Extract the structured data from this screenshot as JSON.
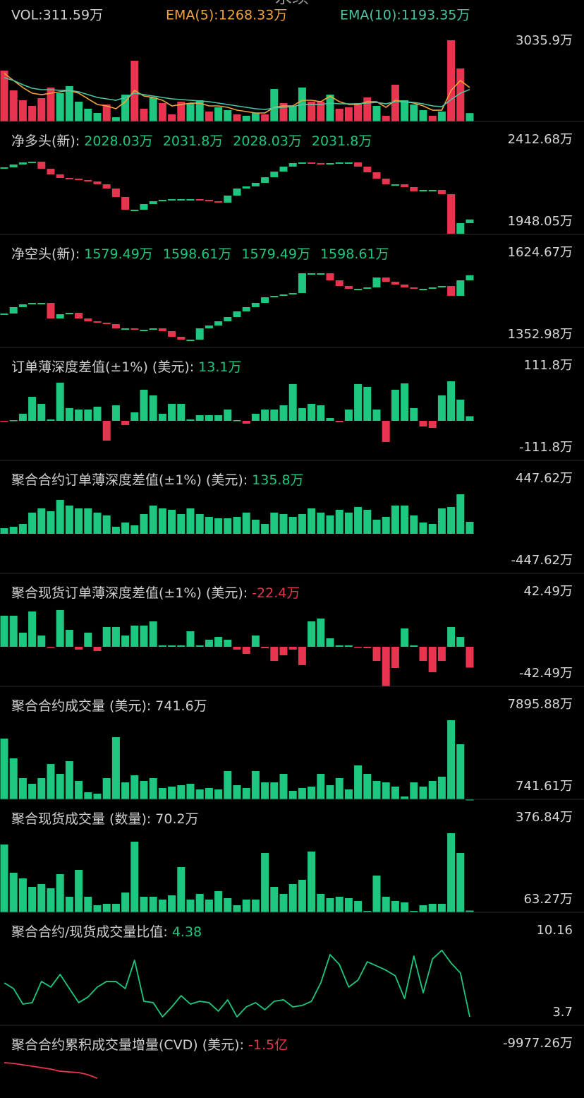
{
  "title": "永续",
  "chart_data": [
    {
      "type": "bar",
      "header": [
        {
          "text": "VOL:311.59万",
          "color": "#cfcfcf"
        },
        {
          "text": "EMA(5):1268.33万",
          "color": "#f2a33a"
        },
        {
          "text": "EMA(10):1193.35万",
          "color": "#4cc4a4"
        }
      ],
      "values": [
        1901,
        1162,
        792,
        581,
        871,
        1267,
        1056,
        1320,
        739,
        475,
        317,
        634,
        158,
        1003,
        2270,
        475,
        898,
        686,
        264,
        739,
        686,
        792,
        370,
        528,
        422,
        264,
        211,
        317,
        264,
        1214,
        686,
        581,
        1267,
        739,
        739,
        1003,
        475,
        528,
        686,
        898,
        581,
        211,
        1373,
        792,
        634,
        422,
        211,
        370,
        3035.9,
        1980,
        311.59
      ],
      "colors": [
        "#e8344e",
        "#e8344e",
        "#e8344e",
        "#e8344e",
        "#e8344e",
        "#e8344e",
        "#1ec77f",
        "#1ec77f",
        "#1ec77f",
        "#1ec77f",
        "#1ec77f",
        "#e8344e",
        "#1ec77f",
        "#1ec77f",
        "#e8344e",
        "#e8344e",
        "#1ec77f",
        "#e8344e",
        "#e8344e",
        "#e8344e",
        "#1ec77f",
        "#1ec77f",
        "#e8344e",
        "#1ec77f",
        "#1ec77f",
        "#e8344e",
        "#1ec77f",
        "#1ec77f",
        "#e8344e",
        "#1ec77f",
        "#e8344e",
        "#1ec77f",
        "#1ec77f",
        "#e8344e",
        "#e8344e",
        "#1ec77f",
        "#e8344e",
        "#e8344e",
        "#e8344e",
        "#e8344e",
        "#1ec77f",
        "#e8344e",
        "#e8344e",
        "#1ec77f",
        "#1ec77f",
        "#1ec77f",
        "#e8344e",
        "#1ec77f",
        "#e8344e",
        "#e8344e",
        "#1ec77f"
      ],
      "lines": [
        {
          "color": "#f2a33a",
          "values": [
            1795,
            1531,
            1267,
            1056,
            1003,
            1056,
            1109,
            1162,
            1056,
            845,
            634,
            581,
            475,
            739,
            1162,
            950,
            898,
            792,
            581,
            634,
            686,
            686,
            581,
            581,
            528,
            422,
            370,
            317,
            317,
            528,
            581,
            581,
            792,
            792,
            739,
            950,
            739,
            634,
            634,
            739,
            739,
            528,
            792,
            739,
            686,
            581,
            422,
            422,
            1162,
            1531,
            1268.33
          ]
        },
        {
          "color": "#4cc4a4",
          "values": [
            1637,
            1531,
            1373,
            1241,
            1188,
            1188,
            1162,
            1162,
            1109,
            1003,
            898,
            845,
            792,
            898,
            1056,
            1003,
            950,
            898,
            845,
            818,
            792,
            766,
            739,
            686,
            634,
            581,
            528,
            475,
            449,
            502,
            528,
            554,
            634,
            634,
            634,
            686,
            660,
            660,
            660,
            686,
            713,
            660,
            739,
            739,
            713,
            660,
            581,
            554,
            818,
            1056,
            1193.35
          ]
        }
      ],
      "ylim": [
        0,
        3035.9
      ],
      "yticks": [
        {
          "value": 3035.9,
          "label": "3035.9万"
        }
      ]
    },
    {
      "type": "candle-step",
      "header": [
        {
          "text": "净多头(新):",
          "color": "#cfcfcf"
        },
        {
          "text": "2028.03万",
          "color": "#1ec77f"
        },
        {
          "text": "2031.8万",
          "color": "#1ec77f"
        },
        {
          "text": "2028.03万",
          "color": "#1ec77f"
        },
        {
          "text": "2031.8万",
          "color": "#1ec77f"
        }
      ],
      "values": [
        2338.2,
        2354.8,
        2367.2,
        2371.4,
        2329.9,
        2296.7,
        2275.9,
        2271.8,
        2263.5,
        2255.2,
        2238.6,
        2213.7,
        2163.9,
        2089.2,
        2089.2,
        2122.4,
        2139.0,
        2147.3,
        2151.4,
        2151.4,
        2151.4,
        2147.3,
        2139.0,
        2130.7,
        2172.2,
        2213.7,
        2226.1,
        2246.9,
        2280.1,
        2313.3,
        2342.3,
        2363.1,
        2367.2,
        2363.1,
        2354.8,
        2363.1,
        2367.2,
        2367.2,
        2342.3,
        2309.1,
        2271.8,
        2238.6,
        2238.6,
        2222.0,
        2197.1,
        2205.3,
        2205.3,
        2180.5,
        1948.05,
        2010.3,
        2031.8
      ],
      "up_color": "#1ec77f",
      "down_color": "#e8344e",
      "ylim": [
        1948.05,
        2412.68
      ],
      "yticks": [
        {
          "value": 2412.68,
          "label": "2412.68万"
        },
        {
          "value": 1948.05,
          "label": "1948.05万"
        }
      ]
    },
    {
      "type": "candle-step",
      "header": [
        {
          "text": "净空头(新):",
          "color": "#cfcfcf"
        },
        {
          "text": "1579.49万",
          "color": "#1ec77f"
        },
        {
          "text": "1598.61万",
          "color": "#1ec77f"
        },
        {
          "text": "1579.49万",
          "color": "#1ec77f"
        },
        {
          "text": "1598.61万",
          "color": "#1ec77f"
        }
      ],
      "values": [
        1467.0,
        1488.9,
        1498.5,
        1503.4,
        1503.4,
        1450.0,
        1464.6,
        1469.4,
        1450.0,
        1440.3,
        1435.5,
        1430.6,
        1416.1,
        1416.1,
        1411.2,
        1411.2,
        1416.1,
        1406.4,
        1387.0,
        1377.2,
        1377.2,
        1416.1,
        1425.8,
        1440.3,
        1454.9,
        1474.3,
        1488.9,
        1503.4,
        1522.8,
        1527.7,
        1532.5,
        1537.4,
        1605.3,
        1605.3,
        1605.3,
        1581.0,
        1561.6,
        1551.9,
        1551.9,
        1556.8,
        1590.7,
        1576.2,
        1566.5,
        1556.8,
        1551.9,
        1551.9,
        1556.8,
        1561.6,
        1527.7,
        1581.0,
        1598.61
      ],
      "up_color": "#1ec77f",
      "down_color": "#e8344e",
      "ylim": [
        1352.98,
        1624.67
      ],
      "yticks": [
        {
          "value": 1624.67,
          "label": "1624.67万"
        },
        {
          "value": 1352.98,
          "label": "1352.98万"
        }
      ]
    },
    {
      "type": "bar",
      "header": [
        {
          "text": "订单薄深度差值(±1%) (美元):",
          "color": "#cfcfcf"
        },
        {
          "text": "13.1万",
          "color": "#1ec77f"
        }
      ],
      "values": [
        -2,
        2,
        20,
        68,
        48,
        4,
        108,
        36,
        32,
        32,
        40,
        -56,
        44,
        -12,
        24,
        88,
        72,
        20,
        48,
        48,
        4,
        16,
        16,
        16,
        32,
        2,
        -8,
        20,
        32,
        32,
        44,
        104,
        36,
        48,
        44,
        8,
        -4,
        32,
        104,
        96,
        32,
        -60,
        88,
        106,
        36,
        -16,
        -20,
        72,
        111.8,
        60,
        13.1
      ],
      "up_color": "#1ec77f",
      "down_color": "#e8344e",
      "ylim": [
        -111.8,
        111.8
      ],
      "yticks": [
        {
          "value": 111.8,
          "label": "111.8万"
        },
        {
          "value": -111.8,
          "label": "-111.8万"
        }
      ]
    },
    {
      "type": "bar",
      "header": [
        {
          "text": "聚合合约订单薄深度差值(±1%) (美元):",
          "color": "#cfcfcf"
        },
        {
          "text": "135.8万",
          "color": "#1ec77f"
        }
      ],
      "values": [
        64,
        80,
        112,
        240,
        288,
        256,
        384,
        320,
        288,
        288,
        240,
        208,
        80,
        128,
        96,
        224,
        320,
        288,
        272,
        224,
        288,
        224,
        192,
        176,
        176,
        192,
        240,
        160,
        112,
        240,
        224,
        192,
        224,
        288,
        240,
        208,
        272,
        240,
        304,
        272,
        160,
        192,
        320,
        320,
        208,
        128,
        112,
        288,
        304,
        447.62,
        135.8
      ],
      "up_color": "#1ec77f",
      "down_color": "#e8344e",
      "ylim": [
        -447.62,
        447.62
      ],
      "yticks": [
        {
          "value": 447.62,
          "label": "447.62万"
        },
        {
          "value": -447.62,
          "label": "-447.62万"
        }
      ]
    },
    {
      "type": "bar",
      "header": [
        {
          "text": "聚合现货订单薄深度差值(±1%) (美元):",
          "color": "#cfcfcf"
        },
        {
          "text": "-22.4万",
          "color": "#e8344e"
        }
      ],
      "values": [
        33.4,
        33.4,
        15.2,
        38,
        12.1,
        -0.8,
        39.5,
        18.2,
        -3,
        15.2,
        -4.6,
        21.3,
        21.3,
        12.1,
        22.8,
        22.8,
        27.3,
        1.5,
        1.5,
        1.5,
        16.7,
        1.5,
        7.6,
        10.6,
        7.6,
        -3,
        -7.6,
        12.1,
        -1.5,
        -15.2,
        -9.1,
        -3,
        -19.7,
        27.3,
        30.4,
        9.1,
        1.5,
        1.5,
        -0.8,
        -1.5,
        -15.2,
        -42.49,
        -22.8,
        19.7,
        1.5,
        -15.2,
        -27.3,
        -15.2,
        21.3,
        10.6,
        -22.4
      ],
      "up_color": "#1ec77f",
      "down_color": "#e8344e",
      "ylim": [
        -42.49,
        42.49
      ],
      "yticks": [
        {
          "value": 42.49,
          "label": "42.49万"
        },
        {
          "value": -42.49,
          "label": "-42.49万"
        }
      ]
    },
    {
      "type": "bar",
      "header": [
        {
          "text": "聚合合约成交量 (美元):",
          "color": "#cfcfcf"
        },
        {
          "text": "741.6万",
          "color": "#cfcfcf"
        }
      ],
      "values": [
        6235.3,
        4446.7,
        2658.0,
        2147,
        2658,
        3935.6,
        3041.3,
        4191.1,
        2402.5,
        1380.4,
        1252.6,
        2658,
        6363,
        2274.7,
        2913.5,
        2402.5,
        2658,
        1763.7,
        1891.4,
        2019.2,
        2147,
        1635.9,
        1763.7,
        1635.9,
        3296.8,
        2019.2,
        1763.7,
        3296.8,
        2274.7,
        2274.7,
        3041.3,
        1508.2,
        1763.7,
        1891.4,
        3041.3,
        2019.2,
        2658,
        1635.9,
        3807.9,
        3041.3,
        2402.5,
        2274.7,
        1891.4,
        997.1,
        2274.7,
        1891.4,
        2402.5,
        2785.8,
        7895.88,
        5724.3,
        741.61
      ],
      "up_color": "#1ec77f",
      "down_color": "#e8344e",
      "ylim": [
        741.61,
        7895.88
      ],
      "yticks": [
        {
          "value": 7895.88,
          "label": "7895.88万"
        },
        {
          "value": 741.61,
          "label": "741.61万"
        }
      ]
    },
    {
      "type": "bar",
      "header": [
        {
          "text": "聚合现货成交量 (数量):",
          "color": "#cfcfcf"
        },
        {
          "text": "70.2万",
          "color": "#cfcfcf"
        }
      ],
      "values": [
        332.1,
        220.1,
        197.7,
        164.1,
        175.3,
        158.5,
        214.5,
        124.9,
        231.3,
        124.9,
        91.3,
        96.9,
        96.9,
        141.7,
        343.3,
        124.9,
        124.9,
        113.7,
        130.5,
        242.5,
        113.7,
        136.1,
        113.7,
        147.3,
        119.3,
        91.3,
        113.7,
        113.7,
        298.5,
        164.1,
        136.1,
        175.3,
        192.1,
        304.1,
        136.1,
        119.3,
        124.9,
        119.3,
        108.1,
        68.9,
        208.9,
        124.9,
        108.1,
        102.5,
        68.9,
        91.3,
        96.9,
        96.9,
        376.84,
        298.5,
        70.2
      ],
      "up_color": "#1ec77f",
      "down_color": "#e8344e",
      "ylim": [
        63.27,
        376.84
      ],
      "yticks": [
        {
          "value": 376.84,
          "label": "376.84万"
        },
        {
          "value": 63.27,
          "label": "63.27万"
        }
      ]
    },
    {
      "type": "line",
      "header": [
        {
          "text": "聚合合约/现货成交量比值:",
          "color": "#cfcfcf"
        },
        {
          "text": "4.38",
          "color": "#1ec77f"
        }
      ],
      "values": [
        7.16,
        6.7,
        5.43,
        5.55,
        7.28,
        6.82,
        7.85,
        6.7,
        5.55,
        6.01,
        6.82,
        7.28,
        7.28,
        6.7,
        9.01,
        5.66,
        5.55,
        4.39,
        5.2,
        6.12,
        5.43,
        5.66,
        5.55,
        4.85,
        5.78,
        4.39,
        5.2,
        5.55,
        4.97,
        5.66,
        5.78,
        5.2,
        5.32,
        5.66,
        7.16,
        9.47,
        8.66,
        6.82,
        7.39,
        8.89,
        8.55,
        8.2,
        7.74,
        5.89,
        9.35,
        6.35,
        9.12,
        9.82,
        8.78,
        7.97,
        4.38
      ],
      "color": "#1ec77f",
      "ylim": [
        3.7,
        10.16
      ],
      "yticks": [
        10.16,
        3.7
      ]
    },
    {
      "type": "line",
      "header": [
        {
          "text": "聚合合约累积成交量增量(CVD) (美元):",
          "color": "#cfcfcf"
        },
        {
          "text": "-1.5亿",
          "color": "#e8344e"
        }
      ],
      "values": [
        -10870,
        -11050,
        -11410,
        -11770,
        -12130,
        -12490,
        -13030,
        -13210,
        -13380,
        -13920,
        -14820
      ],
      "color": "#e8344e",
      "ylim": [
        -30000,
        -9977.26
      ],
      "yticks": [
        {
          "value": -9977.26,
          "label": "-9977.26万"
        }
      ]
    }
  ]
}
